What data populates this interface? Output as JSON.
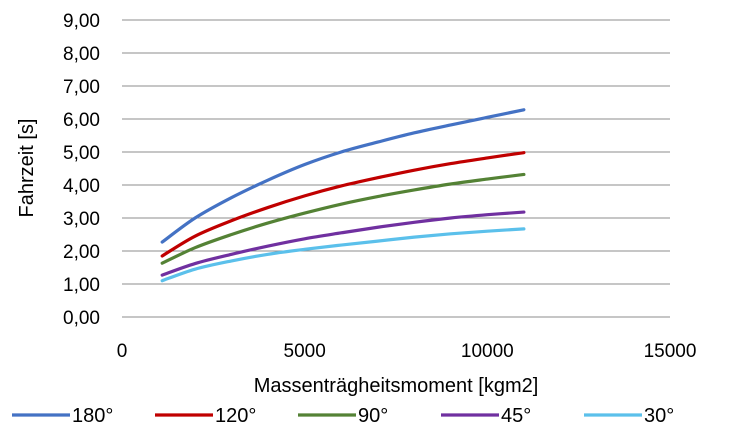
{
  "chart_data": {
    "type": "line",
    "xlabel": "Massenträgheitsmoment [kgm2]",
    "ylabel": "Fahrzeit [s]",
    "xlim": [
      0,
      15000
    ],
    "ylim": [
      0,
      9
    ],
    "x_ticks": [
      "0",
      "5000",
      "10000",
      "15000"
    ],
    "x_tick_values": [
      0,
      5000,
      10000,
      15000
    ],
    "y_ticks": [
      "0,00",
      "1,00",
      "2,00",
      "3,00",
      "4,00",
      "5,00",
      "6,00",
      "7,00",
      "8,00",
      "9,00"
    ],
    "y_tick_values": [
      0,
      1,
      2,
      3,
      4,
      5,
      6,
      7,
      8,
      9
    ],
    "grid": "horizontal",
    "legend_position": "bottom",
    "x": [
      1100,
      2000,
      3000,
      4000,
      5000,
      6000,
      7000,
      8000,
      9000,
      10000,
      11000
    ],
    "series": [
      {
        "name": "180°",
        "color": "#4472c4",
        "values": [
          2.27,
          3.0,
          3.62,
          4.15,
          4.62,
          5.0,
          5.3,
          5.58,
          5.82,
          6.05,
          6.28
        ]
      },
      {
        "name": "120°",
        "color": "#c00000",
        "values": [
          1.85,
          2.45,
          2.92,
          3.32,
          3.67,
          3.97,
          4.22,
          4.45,
          4.65,
          4.82,
          4.98
        ]
      },
      {
        "name": "90°",
        "color": "#548235",
        "values": [
          1.63,
          2.1,
          2.5,
          2.85,
          3.15,
          3.42,
          3.65,
          3.85,
          4.03,
          4.18,
          4.32
        ]
      },
      {
        "name": "45°",
        "color": "#7030a0",
        "values": [
          1.27,
          1.62,
          1.9,
          2.15,
          2.37,
          2.55,
          2.72,
          2.87,
          3.0,
          3.1,
          3.18
        ]
      },
      {
        "name": "30°",
        "color": "#5bc0eb",
        "values": [
          1.1,
          1.45,
          1.7,
          1.9,
          2.05,
          2.18,
          2.3,
          2.42,
          2.52,
          2.6,
          2.67
        ]
      }
    ]
  }
}
